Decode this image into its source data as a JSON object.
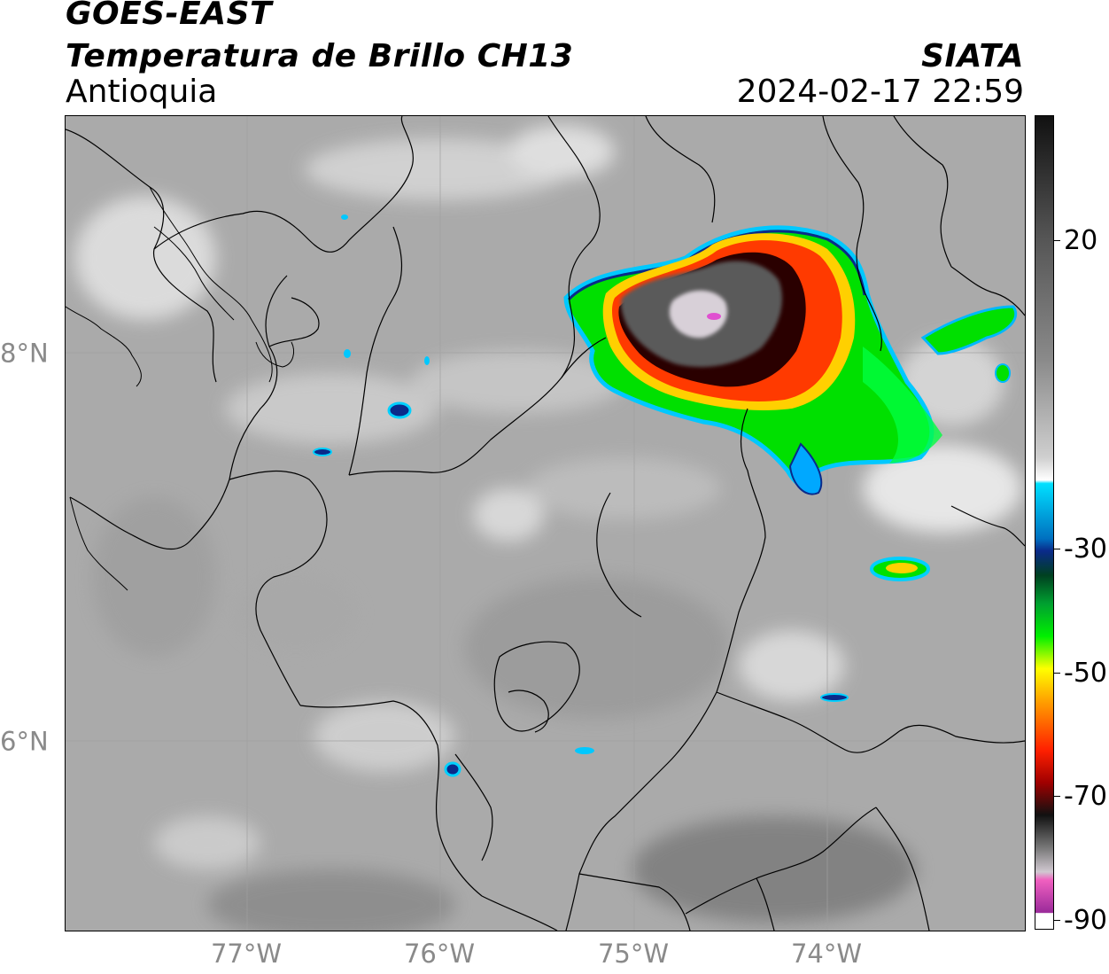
{
  "header": {
    "title_line1": "GOES-EAST",
    "title_line2": "Temperatura de Brillo CH13",
    "subtitle": "Antioquia",
    "agency": "SIATA",
    "datetime": "2024-02-17 22:59"
  },
  "map": {
    "longitude_labels": [
      "77°W",
      "76°W",
      "75°W",
      "74°W"
    ],
    "latitude_labels": [
      "8°N",
      "6°N"
    ]
  },
  "colorbar": {
    "tick_labels": [
      "20",
      "-30",
      "-50",
      "-70",
      "-90"
    ],
    "colors": {
      "magenta": "#b23ab0",
      "black": "#111111",
      "red": "#e01010",
      "orange": "#ff8c00",
      "yellow": "#ffff00",
      "green": "#00e000",
      "dark_blue": "#0a2a8a",
      "cyan": "#00d8ff"
    }
  }
}
